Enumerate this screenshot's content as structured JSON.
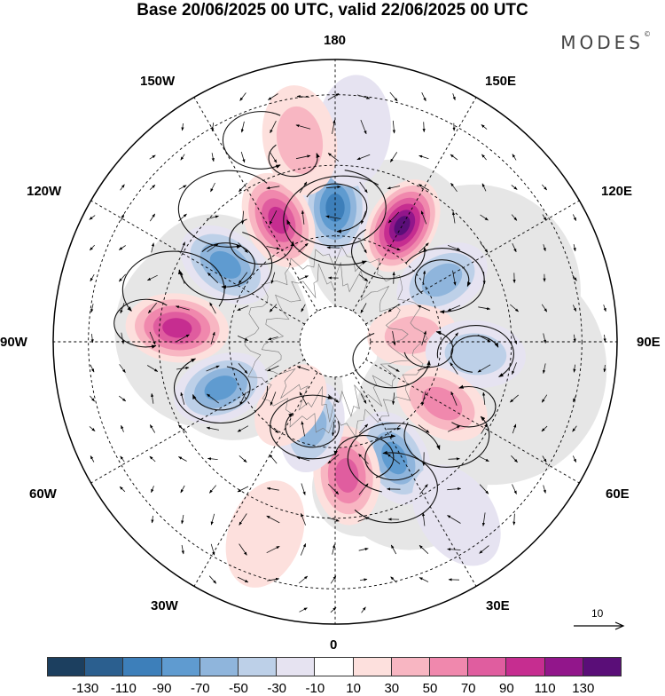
{
  "title": "Base 20/06/2025 00 UTC, valid 22/06/2025 00 UTC",
  "brand": "MODES",
  "brand_mark": "©",
  "longitude_labels": {
    "lon_180": "180",
    "lon_150e": "150E",
    "lon_120e": "120E",
    "lon_90e": "90E",
    "lon_60e": "60E",
    "lon_30e": "30E",
    "lon_0": "0",
    "lon_30w": "30W",
    "lon_60w": "60W",
    "lon_90w": "90W",
    "lon_120w": "120W",
    "lon_150w": "150W"
  },
  "reference_vector": {
    "label": "10"
  },
  "colors": {
    "neg": [
      "#1c3f5f",
      "#2b5f8f",
      "#3d7fba",
      "#5f9bd0",
      "#8fb5dc",
      "#bdd0e8",
      "#e6e3f1"
    ],
    "pos": [
      "#fde0dd",
      "#f8b6c2",
      "#f088ad",
      "#e05d9f",
      "#c62d90",
      "#92168b",
      "#5a0e78"
    ],
    "neutral": "#ffffff",
    "land": "#e6e6e6"
  },
  "anomaly_centers": [
    {
      "lon": 180,
      "lat": 52,
      "sign": "neg",
      "level": 4
    },
    {
      "lon": 150,
      "lat": 52,
      "sign": "pos",
      "level": 6
    },
    {
      "lon": 120,
      "lat": 55,
      "sign": "neg",
      "level": 2
    },
    {
      "lon": 95,
      "lat": 68,
      "sign": "pos",
      "level": 1
    },
    {
      "lon": 85,
      "lat": 50,
      "sign": "neg",
      "level": 1
    },
    {
      "lon": 60,
      "lat": 55,
      "sign": "pos",
      "level": 2
    },
    {
      "lon": 27,
      "lat": 53,
      "sign": "neg",
      "level": 3
    },
    {
      "lon": 5,
      "lat": 52,
      "sign": "pos",
      "level": 3
    },
    {
      "lon": -15,
      "lat": 65,
      "sign": "neg",
      "level": 2
    },
    {
      "lon": -35,
      "lat": 68,
      "sign": "pos",
      "level": 0
    },
    {
      "lon": -68,
      "lat": 55,
      "sign": "neg",
      "level": 3
    },
    {
      "lon": -95,
      "lat": 45,
      "sign": "pos",
      "level": 4
    },
    {
      "lon": -125,
      "lat": 52,
      "sign": "neg",
      "level": 3
    },
    {
      "lon": -155,
      "lat": 52,
      "sign": "pos",
      "level": 4
    },
    {
      "lon": 175,
      "lat": 30,
      "sign": "neg",
      "level": 0
    },
    {
      "lon": -170,
      "lat": 32,
      "sign": "pos",
      "level": 1
    },
    {
      "lon": 35,
      "lat": 30,
      "sign": "neg",
      "level": 0
    },
    {
      "lon": -20,
      "lat": 32,
      "sign": "pos",
      "level": 0
    }
  ],
  "colorbar": {
    "ticks": [
      "-130",
      "-110",
      "-90",
      "-70",
      "-50",
      "-30",
      "-10",
      "10",
      "30",
      "50",
      "70",
      "90",
      "110",
      "130"
    ]
  }
}
